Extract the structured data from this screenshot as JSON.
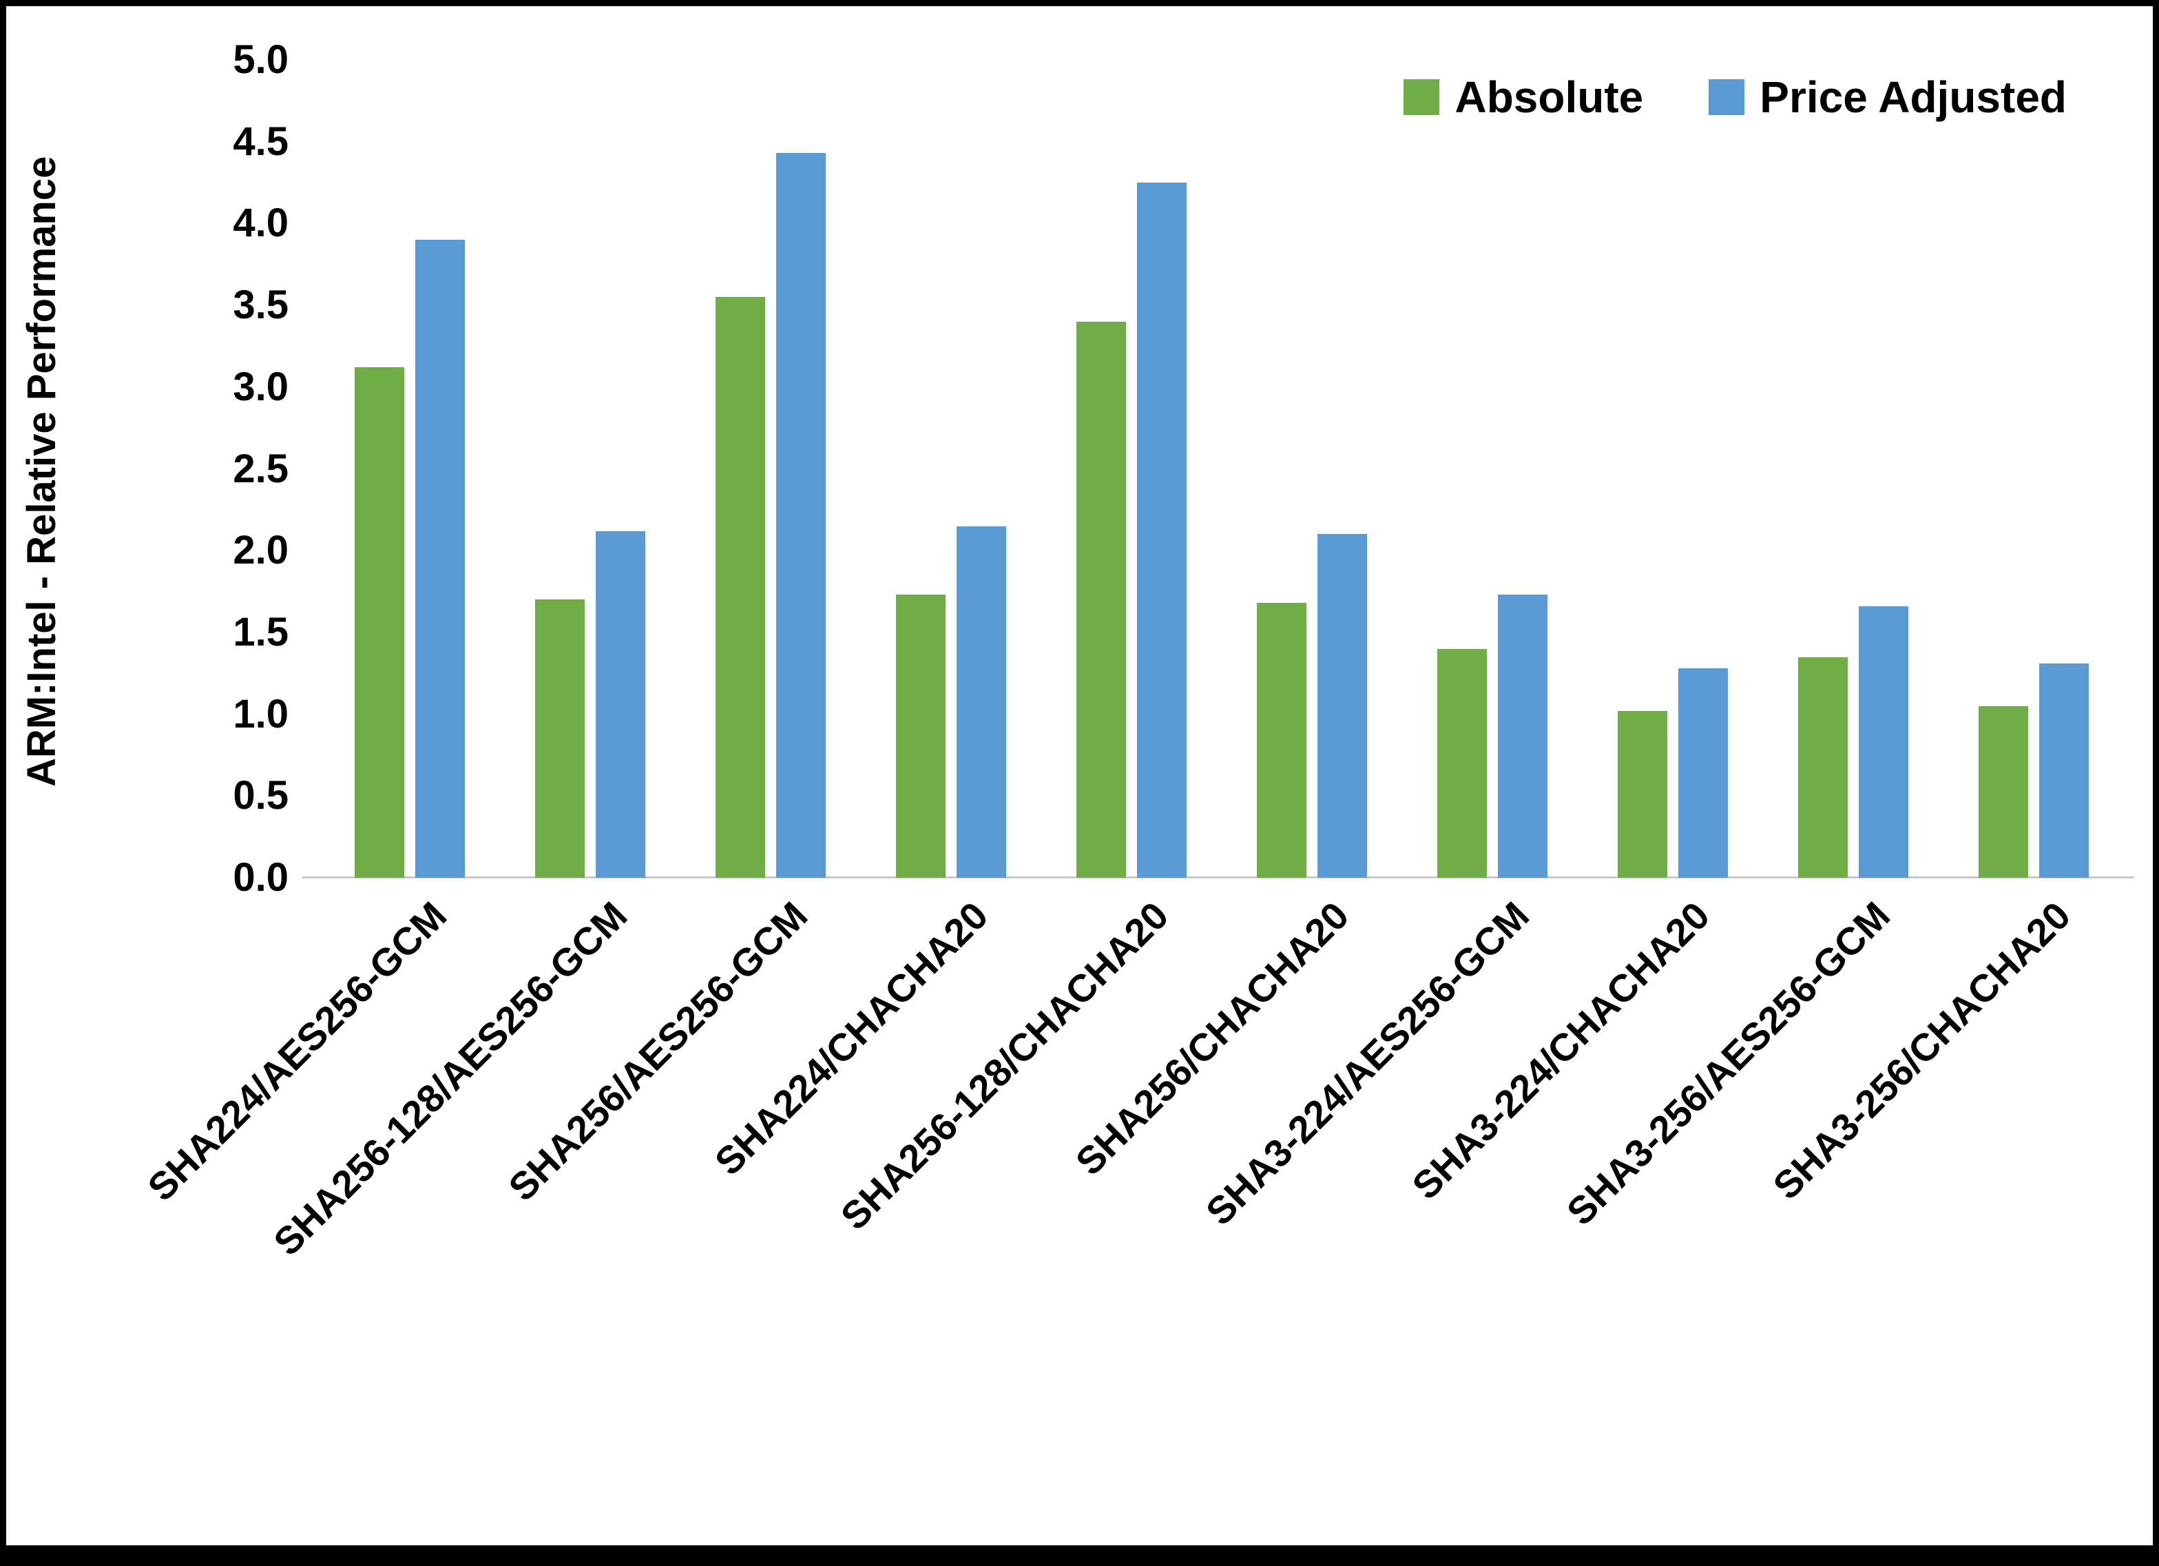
{
  "chart_data": {
    "type": "bar",
    "title": "",
    "xlabel": "",
    "ylabel": "ARM:Intel - Relative Performance",
    "ylim": [
      0,
      5
    ],
    "y_ticks": [
      "5.0",
      "4.5",
      "4.0",
      "3.5",
      "3.0",
      "2.5",
      "2.0",
      "1.5",
      "1.0",
      "0.5",
      "0.0"
    ],
    "grid": false,
    "legend_position": "top-right",
    "categories": [
      "SHA224/AES256-GCM",
      "SHA256-128/AES256-GCM",
      "SHA256/AES256-GCM",
      "SHA224/CHACHA20",
      "SHA256-128/CHACHA20",
      "SHA256/CHACHA20",
      "SHA3-224/AES256-GCM",
      "SHA3-224/CHACHA20",
      "SHA3-256/AES256-GCM",
      "SHA3-256/CHACHA20"
    ],
    "series": [
      {
        "name": "Absolute",
        "color": "#70AD47",
        "values": [
          3.12,
          1.7,
          3.55,
          1.73,
          3.4,
          1.68,
          1.4,
          1.02,
          1.35,
          1.05
        ]
      },
      {
        "name": "Price Adjusted",
        "color": "#5B9BD5",
        "values": [
          3.9,
          2.12,
          4.43,
          2.15,
          4.25,
          2.1,
          1.73,
          1.28,
          1.66,
          1.31
        ]
      }
    ]
  }
}
